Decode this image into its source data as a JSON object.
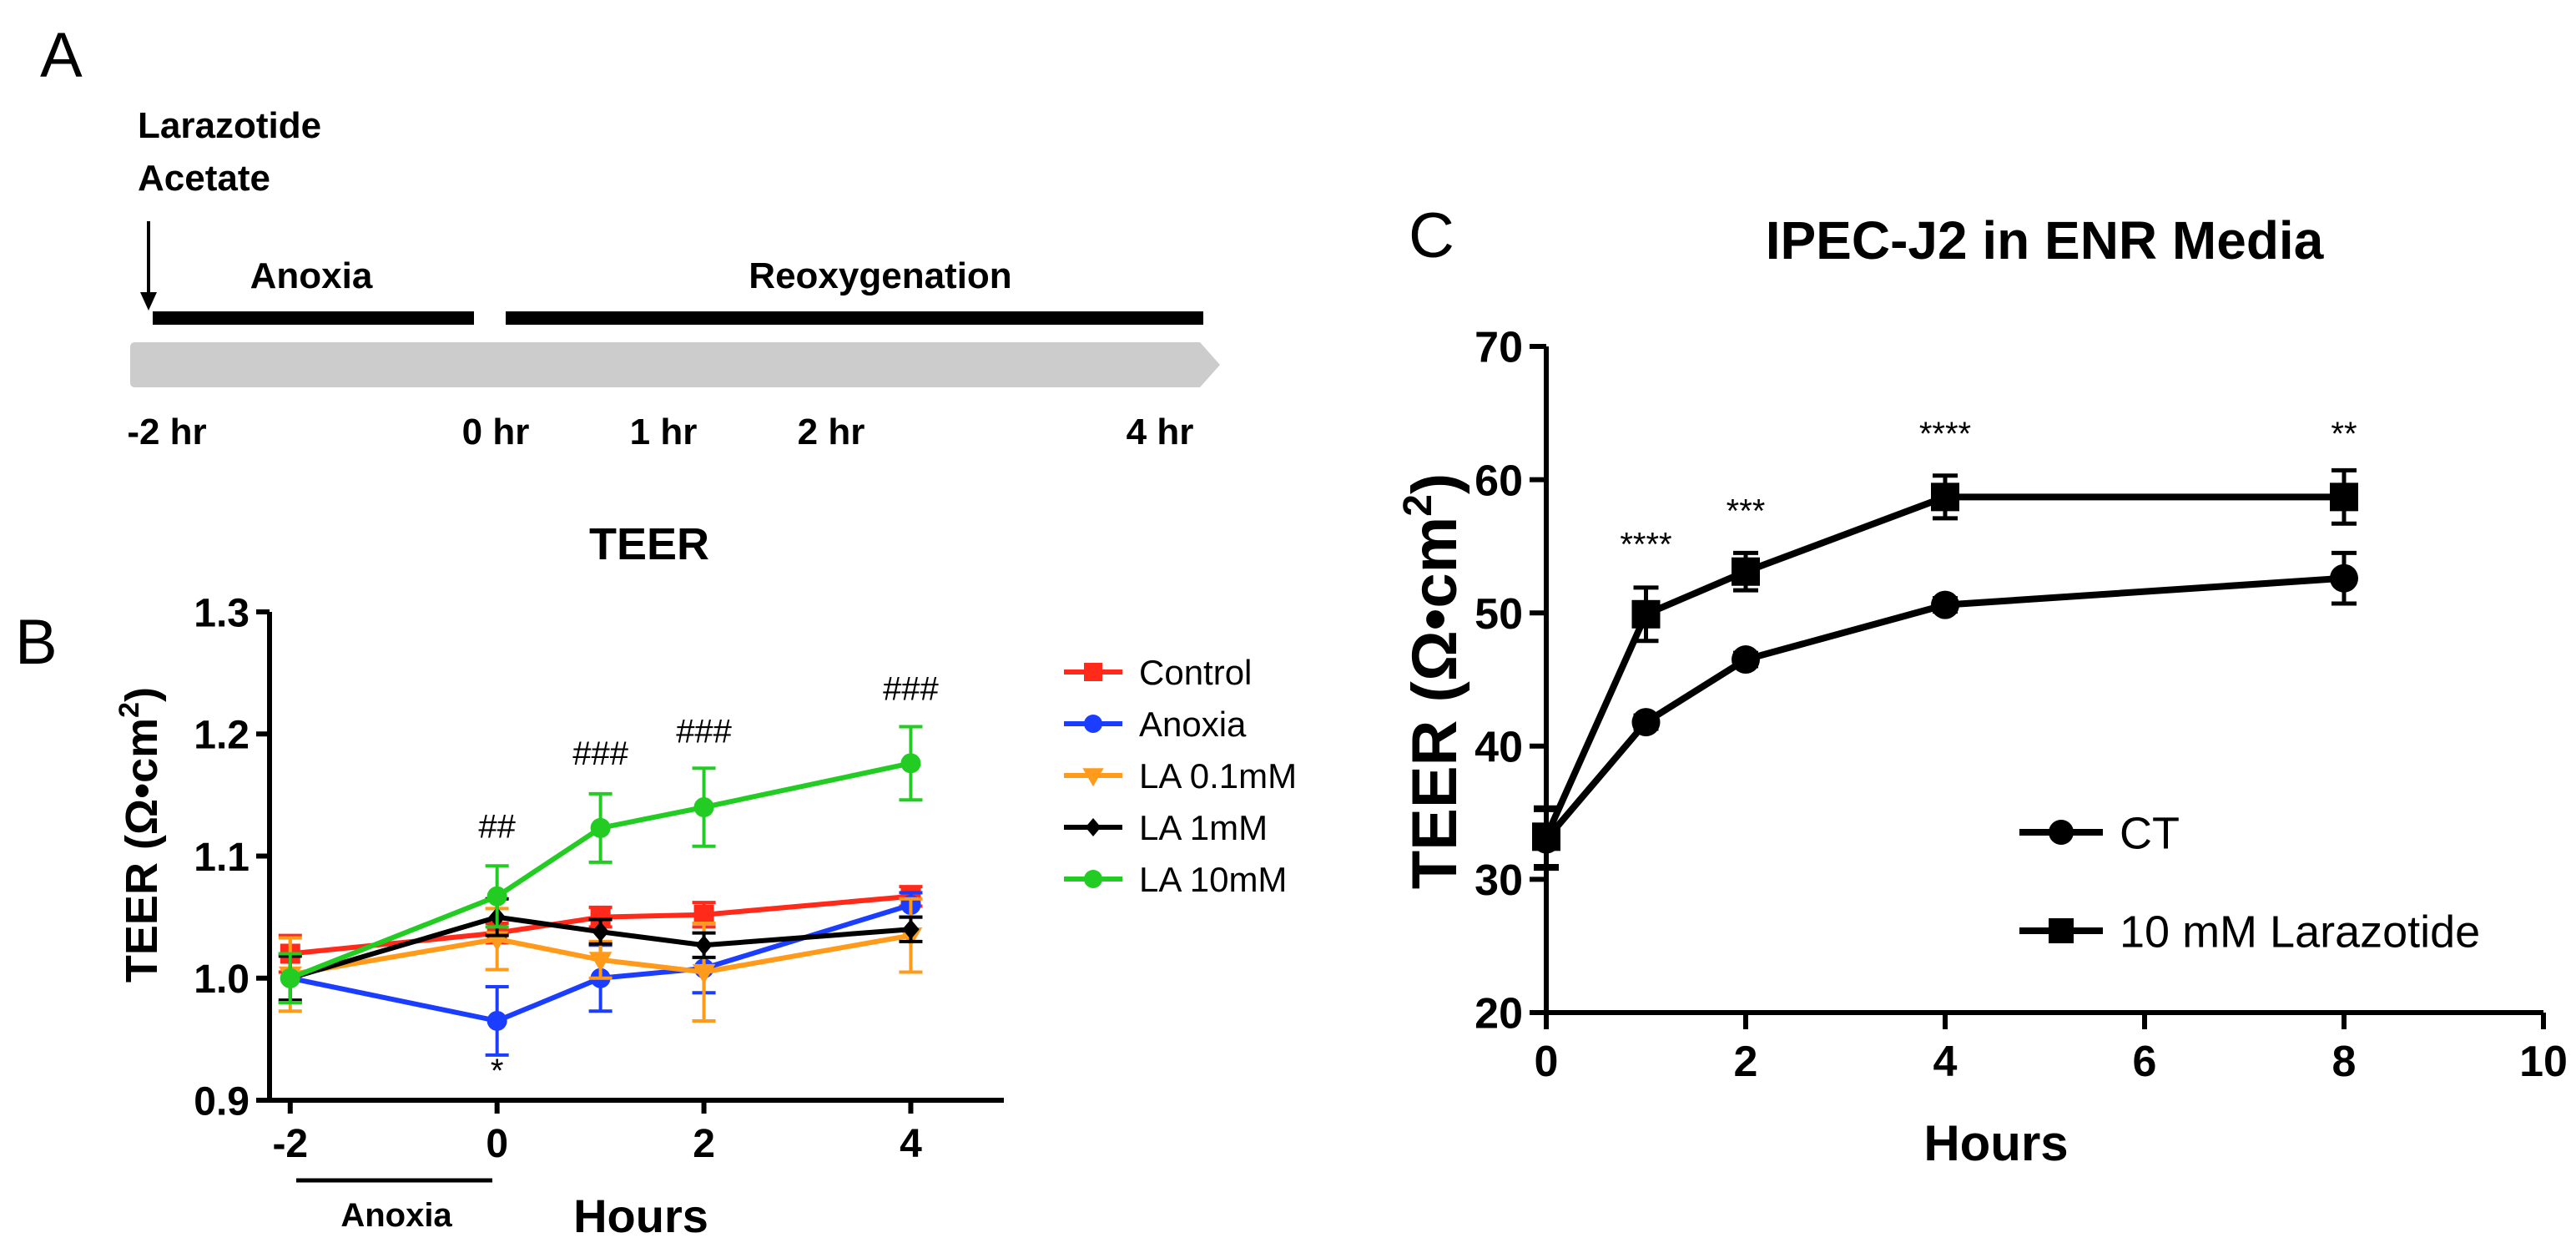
{
  "panel_labels": {
    "a": "A",
    "b": "B",
    "c": "C"
  },
  "timeline": {
    "drug_label_line1": "Larazotide",
    "drug_label_line2": "Acetate",
    "phase_anoxia": "Anoxia",
    "phase_reoxygenation": "Reoxygenation",
    "times": [
      "-2 hr",
      "0 hr",
      "1 hr",
      "2 hr",
      "4 hr"
    ],
    "colors": {
      "bar": "#cccccc",
      "line": "#000000"
    }
  },
  "chart_data": [
    {
      "id": "B",
      "type": "line",
      "title": "TEER",
      "xlabel": "Hours",
      "ylabel": "TEER (Ω•cm²)",
      "ylabel_main": "TEER (Ω•cm",
      "ylabel_sup": "2",
      "ylabel_close": ")",
      "x_ticks": [
        -2,
        0,
        2,
        4
      ],
      "x_tick_labels": [
        "-2",
        "0",
        "2",
        "4"
      ],
      "xlim": [
        -2.2,
        4.9
      ],
      "ylim": [
        0.9,
        1.3
      ],
      "y_ticks": [
        0.9,
        1.0,
        1.1,
        1.2,
        1.3
      ],
      "y_tick_labels": [
        "0.9",
        "1.0",
        "1.1",
        "1.2",
        "1.3"
      ],
      "x_annotation": "Anoxia",
      "series": [
        {
          "name": "Control",
          "color": "#ff2a1a",
          "marker": "square",
          "x": [
            -2,
            0,
            1,
            2,
            4
          ],
          "y": [
            1.02,
            1.037,
            1.05,
            1.052,
            1.067
          ],
          "err": [
            0.015,
            0.008,
            0.008,
            0.01,
            0.008
          ]
        },
        {
          "name": "Anoxia",
          "color": "#1a3dff",
          "marker": "circle",
          "x": [
            -2,
            0,
            1,
            2,
            4
          ],
          "y": [
            1.0,
            0.965,
            1.0,
            1.008,
            1.06
          ],
          "err": [
            0.02,
            0.028,
            0.027,
            0.02,
            0.01
          ]
        },
        {
          "name": "LA 0.1mM",
          "color": "#ff9a1a",
          "marker": "triangle-down",
          "x": [
            -2,
            0,
            1,
            2,
            4
          ],
          "y": [
            1.003,
            1.032,
            1.015,
            1.005,
            1.035
          ],
          "err": [
            0.03,
            0.025,
            0.015,
            0.04,
            0.03
          ]
        },
        {
          "name": "LA 1mM",
          "color": "#000000",
          "marker": "diamond",
          "x": [
            -2,
            0,
            1,
            2,
            4
          ],
          "y": [
            1.0,
            1.05,
            1.038,
            1.027,
            1.04
          ],
          "err": [
            0.018,
            0.015,
            0.01,
            0.01,
            0.01
          ]
        },
        {
          "name": "LA 10mM",
          "color": "#22cc22",
          "marker": "circle",
          "x": [
            -2,
            0,
            1,
            2,
            4
          ],
          "y": [
            1.0,
            1.067,
            1.123,
            1.14,
            1.176
          ],
          "err": [
            0.02,
            0.025,
            0.028,
            0.032,
            0.03
          ]
        }
      ],
      "annotations": [
        {
          "text": "##",
          "x": 0,
          "y": 1.115
        },
        {
          "text": "###",
          "x": 1,
          "y": 1.175
        },
        {
          "text": "###",
          "x": 2,
          "y": 1.193
        },
        {
          "text": "###",
          "x": 4,
          "y": 1.228
        },
        {
          "text": "*",
          "x": 0,
          "y": 0.915
        }
      ],
      "legend_position": "right"
    },
    {
      "id": "C",
      "type": "line",
      "title": "IPEC-J2 in ENR Media",
      "xlabel": "Hours",
      "ylabel": "TEER (Ω•cm²)",
      "ylabel_main": "TEER (Ω•cm",
      "ylabel_sup": "2",
      "ylabel_close": ")",
      "x_ticks": [
        0,
        2,
        4,
        6,
        8,
        10
      ],
      "x_tick_labels": [
        "0",
        "2",
        "4",
        "6",
        "8",
        "10"
      ],
      "xlim": [
        0,
        10
      ],
      "ylim": [
        20,
        70
      ],
      "y_ticks": [
        20,
        30,
        40,
        50,
        60,
        70
      ],
      "y_tick_labels": [
        "20",
        "30",
        "40",
        "50",
        "60",
        "70"
      ],
      "series": [
        {
          "name": "CT",
          "color": "#000000",
          "marker": "circle",
          "x": [
            0,
            1,
            2,
            4,
            8
          ],
          "y": [
            33,
            41.8,
            46.5,
            50.6,
            52.6
          ],
          "err": [
            2.2,
            0.5,
            0.5,
            0.5,
            1.9
          ]
        },
        {
          "name": "10 mM Larazotide",
          "color": "#000000",
          "marker": "square",
          "x": [
            0,
            1,
            2,
            4,
            8
          ],
          "y": [
            33.2,
            49.9,
            53.1,
            58.7,
            58.7
          ],
          "err": [
            2.2,
            2.0,
            1.4,
            1.6,
            2.0
          ]
        }
      ],
      "annotations": [
        {
          "text": "****",
          "x": 1,
          "y": 54.3
        },
        {
          "text": "***",
          "x": 2,
          "y": 56.8
        },
        {
          "text": "****",
          "x": 4,
          "y": 62.6
        },
        {
          "text": "**",
          "x": 8,
          "y": 62.6
        }
      ],
      "legend_position": "bottom-right"
    }
  ]
}
